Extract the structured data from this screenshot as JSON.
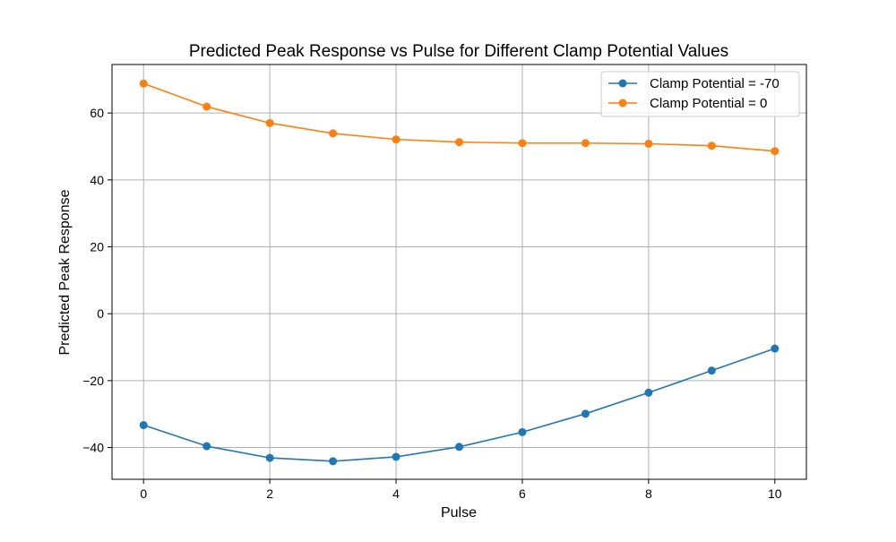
{
  "chart_data": {
    "type": "line",
    "title": "Predicted Peak Response vs Pulse for Different Clamp Potential Values",
    "xlabel": "Pulse",
    "ylabel": "Predicted Peak Response",
    "x": [
      0,
      1,
      2,
      3,
      4,
      5,
      6,
      7,
      8,
      9,
      10
    ],
    "xlim": [
      -0.5,
      10.5
    ],
    "ylim": [
      -49.5,
      74.5
    ],
    "xticks": [
      0,
      2,
      4,
      6,
      8,
      10
    ],
    "yticks": [
      -40,
      -20,
      0,
      20,
      40,
      60
    ],
    "xtick_labels": [
      "0",
      "2",
      "4",
      "6",
      "8",
      "10"
    ],
    "ytick_labels": [
      "−40",
      "−20",
      "0",
      "20",
      "40",
      "60"
    ],
    "grid": true,
    "legend_position": "top-right",
    "marker": "circle",
    "series": [
      {
        "name": "Clamp Potential = -70",
        "color": "#1f77b4",
        "values": [
          -33.3,
          -39.6,
          -43.1,
          -44.1,
          -42.8,
          -39.8,
          -35.4,
          -29.9,
          -23.6,
          -17.0,
          -10.4
        ]
      },
      {
        "name": "Clamp Potential = 0",
        "color": "#ff7f0e",
        "values": [
          68.8,
          61.9,
          57.0,
          53.9,
          52.1,
          51.3,
          51.0,
          51.0,
          50.8,
          50.2,
          48.6
        ]
      }
    ]
  }
}
